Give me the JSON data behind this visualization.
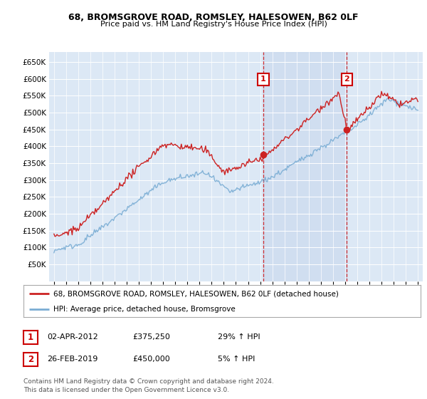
{
  "title": "68, BROMSGROVE ROAD, ROMSLEY, HALESOWEN, B62 0LF",
  "subtitle": "Price paid vs. HM Land Registry's House Price Index (HPI)",
  "legend_line1": "68, BROMSGROVE ROAD, ROMSLEY, HALESOWEN, B62 0LF (detached house)",
  "legend_line2": "HPI: Average price, detached house, Bromsgrove",
  "annotation1_date": "02-APR-2012",
  "annotation1_price": "£375,250",
  "annotation1_hpi": "29% ↑ HPI",
  "annotation2_date": "26-FEB-2019",
  "annotation2_price": "£450,000",
  "annotation2_hpi": "5% ↑ HPI",
  "footnote": "Contains HM Land Registry data © Crown copyright and database right 2024.\nThis data is licensed under the Open Government Licence v3.0.",
  "hpi_color": "#7aadd4",
  "price_color": "#cc2222",
  "annotation_color": "#cc0000",
  "plot_bg": "#dce8f5",
  "ylim": [
    0,
    680000
  ],
  "yticks": [
    0,
    50000,
    100000,
    150000,
    200000,
    250000,
    300000,
    350000,
    400000,
    450000,
    500000,
    550000,
    600000,
    650000
  ],
  "sale1_x": 2012.25,
  "sale1_y": 375250,
  "sale2_x": 2019.15,
  "sale2_y": 450000,
  "vline1_x": 2012.25,
  "vline2_x": 2019.15,
  "xmin": 1994.6,
  "xmax": 2025.4
}
